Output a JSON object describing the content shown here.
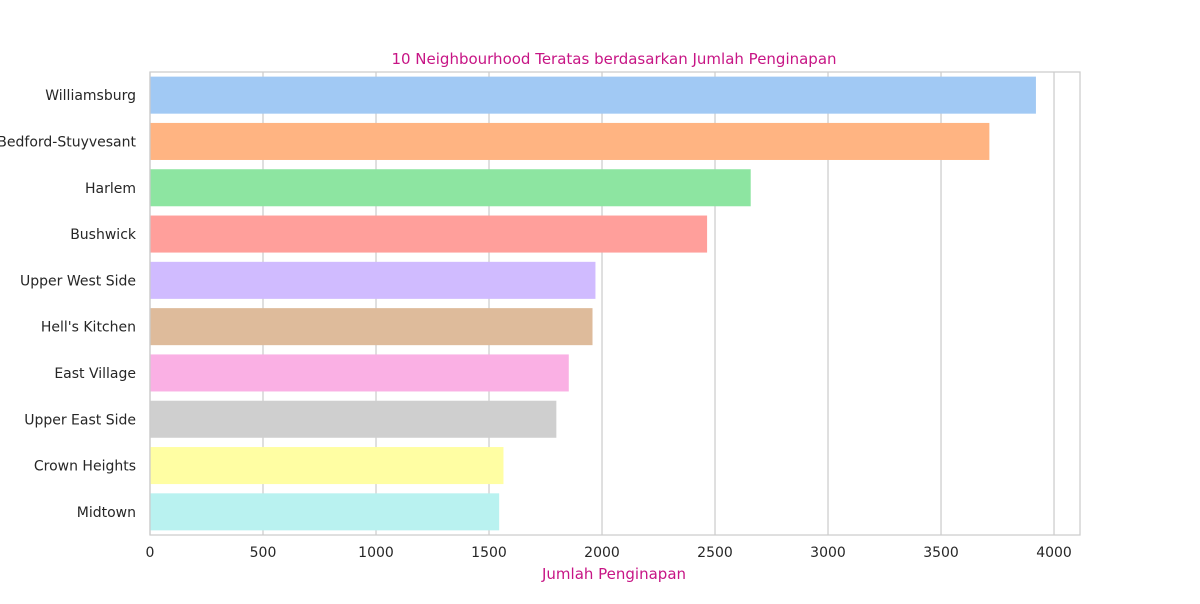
{
  "chart_data": {
    "type": "bar",
    "orientation": "horizontal",
    "title": "10 Neighbourhood Teratas berdasarkan Jumlah Penginapan",
    "xlabel": "Jumlah Penginapan",
    "ylabel": "",
    "xlim": [
      0,
      4115
    ],
    "xticks": [
      0,
      500,
      1000,
      1500,
      2000,
      2500,
      3000,
      3500,
      4000
    ],
    "grid": true,
    "categories": [
      "Williamsburg",
      "Bedford-Stuyvesant",
      "Harlem",
      "Bushwick",
      "Upper West Side",
      "Hell's Kitchen",
      "East Village",
      "Upper East Side",
      "Crown Heights",
      "Midtown"
    ],
    "values": [
      3920,
      3714,
      2658,
      2465,
      1971,
      1958,
      1853,
      1798,
      1564,
      1545
    ],
    "colors": [
      "#a1c9f4",
      "#ffb482",
      "#8de5a1",
      "#ff9f9b",
      "#d0bbff",
      "#debb9b",
      "#fab0e4",
      "#cfcfcf",
      "#fffea3",
      "#b9f2f0"
    ],
    "title_color": "#c71585",
    "xlabel_color": "#c71585"
  }
}
